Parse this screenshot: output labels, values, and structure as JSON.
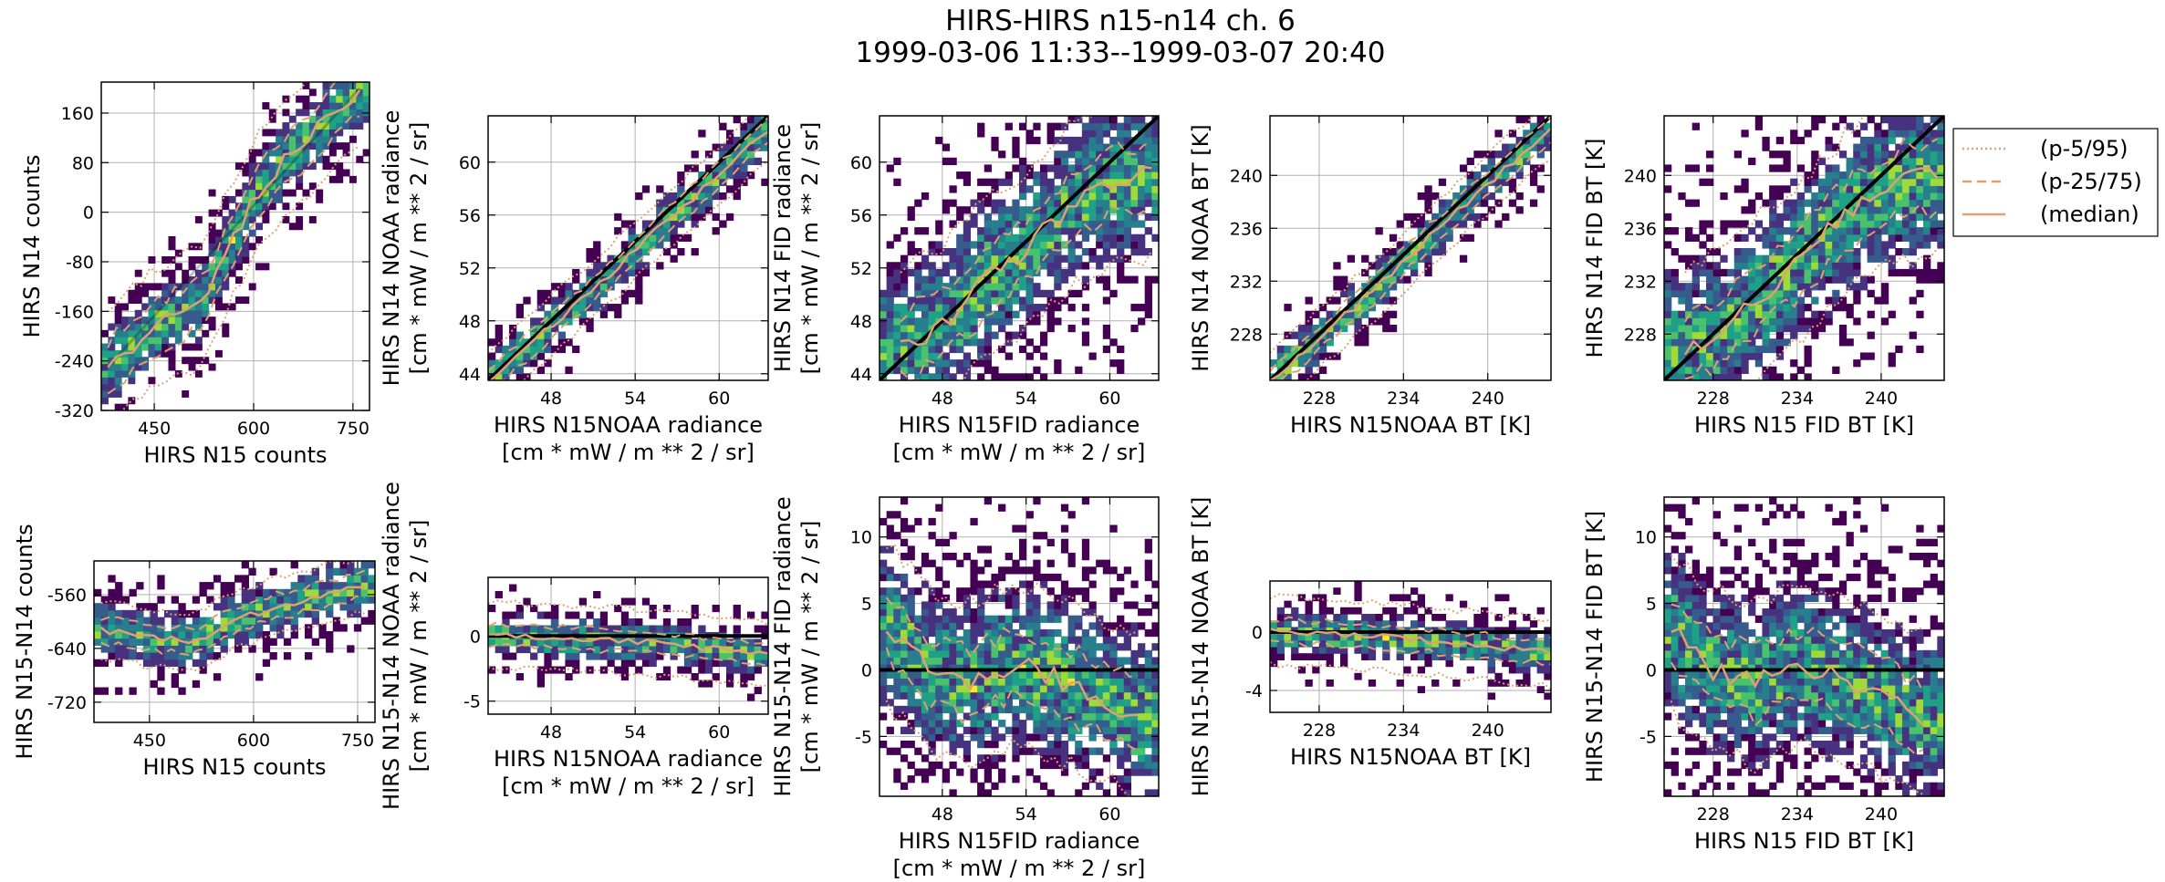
{
  "title_line1": "HIRS-HIRS n15-n14 ch. 6",
  "title_line2": "1999-03-06 11:33--1999-03-07 20:40",
  "colors": {
    "curve": "#e0a070",
    "identity": "#000000",
    "grid": "#b0b0b0",
    "bins": [
      "#440154",
      "#46327e",
      "#365c8d",
      "#277f8e",
      "#1fa187",
      "#4ac16d",
      "#a0da39",
      "#fde725"
    ]
  },
  "legend": {
    "position": "right of top-right panel",
    "entries": [
      {
        "label": "(p-5/95)",
        "style": "dotted"
      },
      {
        "label": "(p-25/75)",
        "style": "dashed"
      },
      {
        "label": "(median)",
        "style": "solid"
      }
    ]
  },
  "chart_data": [
    {
      "type": "heatmap",
      "xlabel": [
        "HIRS N15 counts"
      ],
      "ylabel": [
        "HIRS N14 counts"
      ],
      "xlim": [
        370,
        775
      ],
      "ylim": [
        -320,
        210
      ],
      "xticks": [
        450,
        600,
        750
      ],
      "yticks": [
        -320,
        -240,
        -160,
        -80,
        0,
        80,
        160
      ],
      "median": [
        [
          380,
          -250
        ],
        [
          450,
          -185
        ],
        [
          520,
          -150
        ],
        [
          560,
          -60
        ],
        [
          600,
          20
        ],
        [
          650,
          90
        ],
        [
          700,
          140
        ],
        [
          760,
          200
        ]
      ],
      "iqr": 40,
      "p5": 95,
      "reference": "diagonal",
      "cloud_width": 45
    },
    {
      "type": "heatmap",
      "xlabel": [
        "HIRS N15NOAA radiance",
        "[cm * mW / m ** 2 / sr]"
      ],
      "ylabel": [
        "HIRS N14 NOAA radiance",
        "[cm * mW / m ** 2 / sr]"
      ],
      "xlim": [
        43.5,
        63.5
      ],
      "ylim": [
        43.5,
        63.5
      ],
      "xticks": [
        48,
        54,
        60
      ],
      "yticks": [
        44,
        48,
        52,
        56,
        60
      ],
      "median": [
        [
          43.5,
          43.5
        ],
        [
          48,
          47.6
        ],
        [
          52,
          51.3
        ],
        [
          56,
          55.3
        ],
        [
          60,
          59
        ],
        [
          63.5,
          62.5
        ]
      ],
      "iqr": 0.9,
      "p5": 2.2,
      "reference": "identity",
      "cloud_width": 1.4
    },
    {
      "type": "heatmap",
      "xlabel": [
        "HIRS N15FID radiance",
        "[cm * mW / m ** 2 / sr]"
      ],
      "ylabel": [
        "HIRS N14 FID radiance",
        "[cm * mW / m ** 2 / sr]"
      ],
      "xlim": [
        43.5,
        63.5
      ],
      "ylim": [
        43.5,
        63.5
      ],
      "xticks": [
        48,
        54,
        60
      ],
      "yticks": [
        44,
        48,
        52,
        56,
        60
      ],
      "median": [
        [
          45,
          46
        ],
        [
          48,
          47.5
        ],
        [
          51,
          51
        ],
        [
          54,
          53.5
        ],
        [
          57,
          56.5
        ],
        [
          60,
          58.5
        ],
        [
          63,
          59
        ]
      ],
      "iqr": 2.5,
      "p5": 6,
      "reference": "identity",
      "cloud_width": 4.5
    },
    {
      "type": "heatmap",
      "xlabel": [
        "HIRS N15NOAA BT [K]"
      ],
      "ylabel": [
        "HIRS N14 NOAA BT [K]"
      ],
      "xlim": [
        224.5,
        244.5
      ],
      "ylim": [
        224.5,
        244.5
      ],
      "xticks": [
        228,
        234,
        240
      ],
      "yticks": [
        228,
        232,
        236,
        240
      ],
      "median": [
        [
          224.5,
          224.5
        ],
        [
          228,
          227.7
        ],
        [
          232,
          231.4
        ],
        [
          236,
          235.5
        ],
        [
          240,
          239.4
        ],
        [
          244.5,
          243.5
        ]
      ],
      "iqr": 0.9,
      "p5": 2.2,
      "reference": "identity",
      "cloud_width": 1.4
    },
    {
      "type": "heatmap",
      "xlabel": [
        "HIRS N15 FID BT [K]"
      ],
      "ylabel": [
        "HIRS N14 FID BT [K]"
      ],
      "xlim": [
        224.5,
        244.5
      ],
      "ylim": [
        224.5,
        244.5
      ],
      "xticks": [
        228,
        234,
        240
      ],
      "yticks": [
        228,
        232,
        236,
        240
      ],
      "median": [
        [
          226,
          227
        ],
        [
          229,
          228.5
        ],
        [
          232,
          231.5
        ],
        [
          235,
          234.5
        ],
        [
          238,
          237.5
        ],
        [
          241,
          239.5
        ],
        [
          244,
          240
        ]
      ],
      "iqr": 2.5,
      "p5": 6,
      "reference": "identity",
      "cloud_width": 4.5
    },
    {
      "type": "heatmap",
      "xlabel": [
        "HIRS N15 counts"
      ],
      "ylabel": [
        "HIRS N15-N14 counts"
      ],
      "xlim": [
        370,
        775
      ],
      "ylim": [
        -750,
        -510
      ],
      "xticks": [
        450,
        600,
        750
      ],
      "yticks": [
        -720,
        -640,
        -560
      ],
      "median": [
        [
          380,
          -612
        ],
        [
          450,
          -625
        ],
        [
          520,
          -628
        ],
        [
          560,
          -605
        ],
        [
          620,
          -582
        ],
        [
          700,
          -560
        ],
        [
          760,
          -545
        ]
      ],
      "iqr": 18,
      "p5": 42,
      "reference": "none",
      "cloud_width": 30
    },
    {
      "type": "heatmap",
      "xlabel": [
        "HIRS N15NOAA radiance",
        "[cm * mW / m ** 2 / sr]"
      ],
      "ylabel": [
        "HIRS N15-N14 NOAA radiance",
        "[cm * mW / m ** 2 / sr]"
      ],
      "xlim": [
        43.5,
        63.5
      ],
      "ylim": [
        -6,
        4.5
      ],
      "xticks": [
        48,
        54,
        60
      ],
      "yticks": [
        -5,
        0
      ],
      "median": [
        [
          43.5,
          0.1
        ],
        [
          48,
          -0.1
        ],
        [
          52,
          -0.3
        ],
        [
          56,
          -0.6
        ],
        [
          60,
          -1
        ],
        [
          63.5,
          -1.5
        ]
      ],
      "iqr": 0.8,
      "p5": 2.5,
      "reference": "zero",
      "cloud_width": 1.2
    },
    {
      "type": "heatmap",
      "xlabel": [
        "HIRS N15FID radiance",
        "[cm * mW / m ** 2 / sr]"
      ],
      "ylabel": [
        "HIRS N15-N14 FID radiance",
        "[cm * mW / m ** 2 / sr]"
      ],
      "xlim": [
        43.5,
        63.5
      ],
      "ylim": [
        -9.5,
        13
      ],
      "xticks": [
        48,
        54,
        60
      ],
      "yticks": [
        -5,
        0,
        5,
        10
      ],
      "median": [
        [
          44,
          3.5
        ],
        [
          47,
          0
        ],
        [
          50,
          -1
        ],
        [
          53,
          0.5
        ],
        [
          56,
          -0.5
        ],
        [
          59,
          -2
        ],
        [
          62,
          -3.5
        ]
      ],
      "iqr": 2.5,
      "p5": 6,
      "reference": "zero",
      "cloud_width": 4.5
    },
    {
      "type": "heatmap",
      "xlabel": [
        "HIRS N15NOAA BT [K]"
      ],
      "ylabel": [
        "HIRS N15-N14 NOAA BT [K]"
      ],
      "xlim": [
        224.5,
        244.5
      ],
      "ylim": [
        -5.5,
        3.5
      ],
      "xticks": [
        228,
        234,
        240
      ],
      "yticks": [
        -4,
        0
      ],
      "median": [
        [
          224.5,
          0.1
        ],
        [
          228,
          -0.1
        ],
        [
          232,
          -0.3
        ],
        [
          236,
          -0.6
        ],
        [
          240,
          -1
        ],
        [
          244.5,
          -1.4
        ]
      ],
      "iqr": 0.8,
      "p5": 2.3,
      "reference": "zero",
      "cloud_width": 1.1
    },
    {
      "type": "heatmap",
      "xlabel": [
        "HIRS N15 FID BT [K]"
      ],
      "ylabel": [
        "HIRS N15-N14 FID BT [K]"
      ],
      "xlim": [
        224.5,
        244.5
      ],
      "ylim": [
        -9.5,
        13
      ],
      "xticks": [
        228,
        234,
        240
      ],
      "yticks": [
        -5,
        0,
        5,
        10
      ],
      "median": [
        [
          225,
          3
        ],
        [
          228,
          0
        ],
        [
          231,
          -1
        ],
        [
          234,
          0.5
        ],
        [
          237,
          -0.5
        ],
        [
          240,
          -2
        ],
        [
          243,
          -3.5
        ]
      ],
      "iqr": 2.5,
      "p5": 6,
      "reference": "zero",
      "cloud_width": 4.5
    }
  ]
}
